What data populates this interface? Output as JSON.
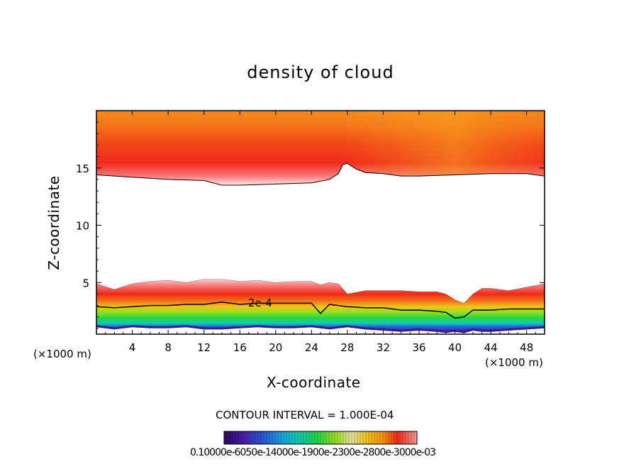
{
  "chart_data": {
    "type": "heatmap",
    "title": "density of cloud",
    "xlabel": "X-coordinate",
    "ylabel": "Z-coordinate",
    "x_unit_label": "(×1000 m)",
    "xlim": [
      0,
      50
    ],
    "ylim": [
      0.5,
      20
    ],
    "xticks": [
      4,
      8,
      12,
      16,
      20,
      24,
      28,
      32,
      36,
      40,
      44,
      48
    ],
    "yticks": [
      5,
      10,
      15
    ],
    "contour_interval_text": "CONTOUR INTERVAL = 1.000E-04",
    "contour_label": "2e-4",
    "colorbar_labels_text": "0.10000e-6050e-14000e-1900e-2300e-2800e-3000e-03",
    "upper_layer": {
      "x": [
        0,
        4,
        8,
        12,
        14,
        16,
        20,
        24,
        26,
        27,
        27.5,
        28,
        29,
        30,
        32,
        34,
        36,
        40,
        44,
        48,
        50
      ],
      "base": [
        14.4,
        14.2,
        14.0,
        13.9,
        13.5,
        13.5,
        13.6,
        13.7,
        14.0,
        14.5,
        15.3,
        15.4,
        14.9,
        14.6,
        14.5,
        14.3,
        14.3,
        14.4,
        14.5,
        14.5,
        14.3
      ],
      "top": 20
    },
    "lower_layer": {
      "x": [
        0,
        2,
        4,
        6,
        8,
        10,
        12,
        14,
        16,
        18,
        20,
        22,
        24,
        25,
        26,
        27,
        28,
        30,
        32,
        34,
        36,
        38,
        39,
        40,
        41,
        42,
        43,
        44,
        46,
        48,
        50
      ],
      "top": [
        4.9,
        4.4,
        4.9,
        5.1,
        5.2,
        5.0,
        5.3,
        5.3,
        5.1,
        5.2,
        5.0,
        5.1,
        5.1,
        4.8,
        5.0,
        4.9,
        4.0,
        4.3,
        4.3,
        4.3,
        4.2,
        4.2,
        4.0,
        3.5,
        3.2,
        4.0,
        4.5,
        4.5,
        4.3,
        4.6,
        4.9
      ],
      "contour_2e4": [
        2.9,
        2.8,
        2.9,
        3.0,
        3.0,
        3.1,
        3.1,
        3.3,
        3.1,
        3.2,
        3.2,
        3.2,
        3.2,
        2.3,
        3.1,
        3.0,
        2.9,
        2.8,
        2.8,
        2.6,
        2.6,
        2.5,
        2.4,
        1.9,
        2.0,
        2.6,
        2.6,
        2.6,
        2.7,
        2.7,
        2.7
      ],
      "base": [
        1.2,
        1.0,
        1.2,
        1.1,
        1.1,
        1.2,
        1.0,
        1.0,
        1.1,
        1.2,
        1.1,
        1.1,
        1.2,
        1.1,
        1.0,
        1.1,
        1.2,
        1.0,
        0.9,
        0.8,
        0.9,
        0.8,
        0.7,
        0.8,
        0.7,
        0.9,
        0.8,
        0.8,
        0.9,
        1.0,
        1.1
      ]
    },
    "colormap": [
      "#2a0a5a",
      "#4b1da8",
      "#2b56d8",
      "#1aa3e0",
      "#12c9b3",
      "#22d64a",
      "#7be020",
      "#c9e81c",
      "#f0c418",
      "#f59a12",
      "#f46810",
      "#ef2a18",
      "#f45a5a",
      "#f99a9a"
    ]
  }
}
